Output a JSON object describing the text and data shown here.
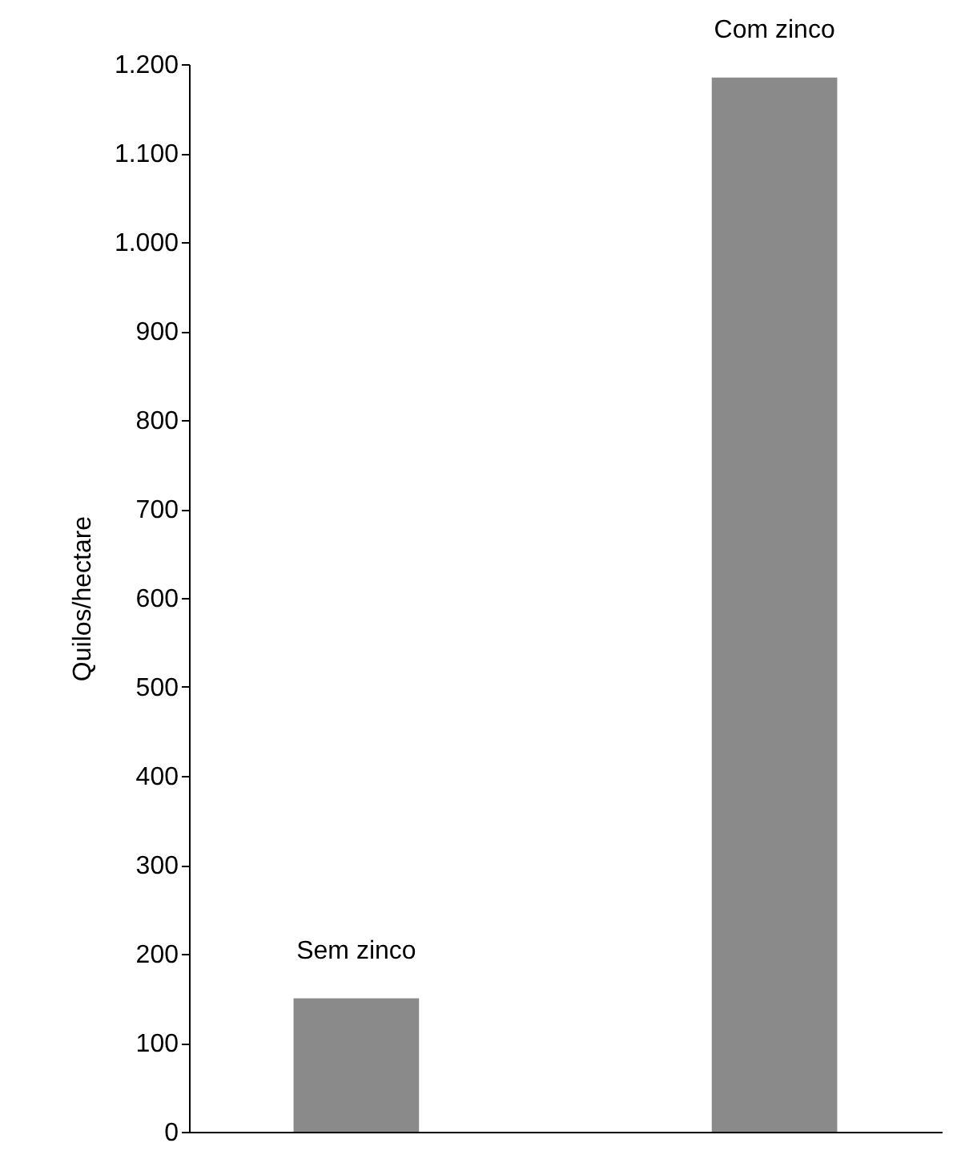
{
  "chart_data": {
    "type": "bar",
    "ylabel": "Quilos/hectare",
    "categories": [
      "Sem zinco",
      "Com zinco"
    ],
    "values": [
      150,
      1185
    ],
    "color": "#8a8a8a",
    "ylim": [
      0,
      1200
    ],
    "yticks": [
      0,
      100,
      200,
      300,
      400,
      500,
      600,
      700,
      800,
      900,
      {
        "value": 1000,
        "label": "1.000"
      },
      {
        "value": 1100,
        "label": "1.100"
      },
      {
        "value": 1200,
        "label": "1.200"
      }
    ],
    "grid": false
  }
}
